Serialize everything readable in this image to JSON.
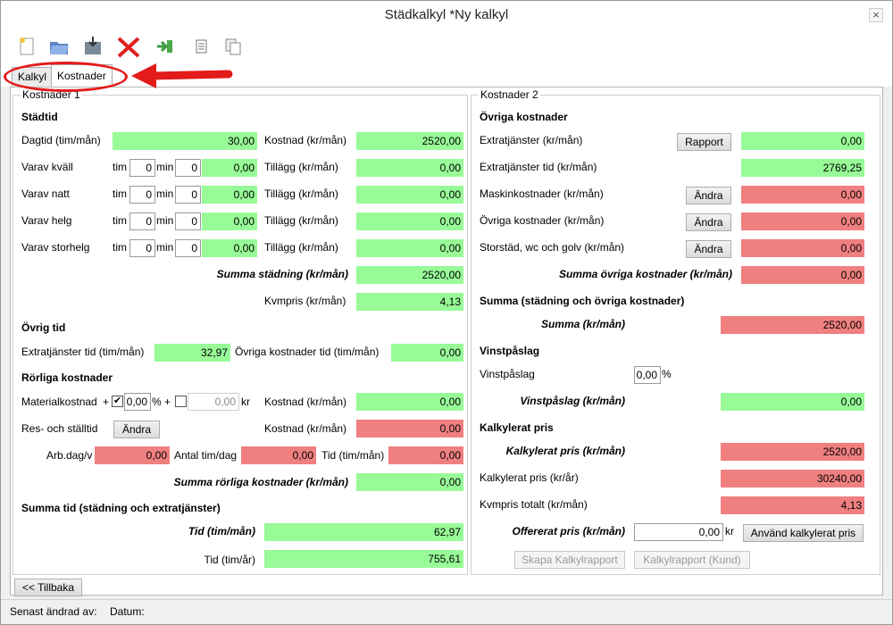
{
  "window": {
    "title": "Städkalkyl *Ny kalkyl",
    "close": "×"
  },
  "tabs": [
    {
      "label": "Kalkyl"
    },
    {
      "label": "Kostnader"
    }
  ],
  "left": {
    "legend": "Kostnader 1",
    "stadtid": {
      "header": "Städtid",
      "dagtid_label": "Dagtid (tim/mån)",
      "dagtid_value": "30,00",
      "kostnad_label": "Kostnad (kr/mån)",
      "kostnad_value": "2520,00",
      "tim": "tim",
      "min": "min",
      "tillagg_label": "Tillägg (kr/mån)",
      "rows": [
        {
          "label": "Varav kväll",
          "tim": "0",
          "min": "0",
          "value": "0,00",
          "tillagg": "0,00"
        },
        {
          "label": "Varav natt",
          "tim": "0",
          "min": "0",
          "value": "0,00",
          "tillagg": "0,00"
        },
        {
          "label": "Varav helg",
          "tim": "0",
          "min": "0",
          "value": "0,00",
          "tillagg": "0,00"
        },
        {
          "label": "Varav storhelg",
          "tim": "0",
          "min": "0",
          "value": "0,00",
          "tillagg": "0,00"
        }
      ],
      "summa_label": "Summa städning (kr/mån)",
      "summa_value": "2520,00",
      "kvmpris_label": "Kvmpris (kr/mån)",
      "kvmpris_value": "4,13"
    },
    "ovrig_tid": {
      "header": "Övrig tid",
      "extra_label": "Extratjänster tid (tim/mån)",
      "extra_value": "32,97",
      "ovriga_label": "Övriga kostnader tid (tim/mån)",
      "ovriga_value": "0,00"
    },
    "rorliga": {
      "header": "Rörliga kostnader",
      "material_label": "Materialkostnad",
      "plus": "+",
      "pct_value": "0,00",
      "pct": "%",
      "kr_value": "0,00",
      "kr": "kr",
      "kostnad_label": "Kostnad (kr/mån)",
      "material_kostnad": "0,00",
      "res_label": "Res- och ställtid",
      "andra": "Ändra",
      "res_kostnad": "0,00",
      "arbdag_label": "Arb.dag/v",
      "arbdag_value": "0,00",
      "antal_label": "Antal tim/dag",
      "antal_value": "0,00",
      "tid_label": "Tid (tim/mån)",
      "tid_value": "0,00",
      "summa_label": "Summa rörliga kostnader (kr/mån)",
      "summa_value": "0,00"
    },
    "summa_tid": {
      "header": "Summa tid (städning och extratjänster)",
      "tid_man_label": "Tid (tim/mån)",
      "tid_man_value": "62,97",
      "tid_ar_label": "Tid (tim/år)",
      "tid_ar_value": "755,61"
    }
  },
  "right": {
    "legend": "Kostnader 2",
    "ovriga": {
      "header": "Övriga kostnader",
      "extra_label": "Extratjänster (kr/mån)",
      "rapport": "Rapport",
      "extra_value": "0,00",
      "extratid_label": "Extratjänster tid (kr/mån)",
      "extratid_value": "2769,25",
      "maskin_label": "Maskinkostnader (kr/mån)",
      "maskin_value": "0,00",
      "ovr_label": "Övriga kostnader (kr/mån)",
      "ovr_value": "0,00",
      "stor_label": "Storstäd, wc och golv (kr/mån)",
      "stor_value": "0,00",
      "andra": "Ändra",
      "summa_label": "Summa övriga kostnader (kr/mån)",
      "summa_value": "0,00"
    },
    "summa": {
      "header": "Summa (städning och övriga kostnader)",
      "label": "Summa (kr/mån)",
      "value": "2520,00"
    },
    "vinst": {
      "header": "Vinstpåslag",
      "label": "Vinstpåslag",
      "pct_value": "0,00",
      "pct": "%",
      "result_label": "Vinstpåslag (kr/mån)",
      "result_value": "0,00"
    },
    "kalkylerat": {
      "header": "Kalkylerat pris",
      "man_label": "Kalkylerat pris (kr/mån)",
      "man_value": "2520,00",
      "ar_label": "Kalkylerat pris (kr/år)",
      "ar_value": "30240,00",
      "kvm_label": "Kvmpris totalt (kr/mån)",
      "kvm_value": "4,13",
      "offer_label": "Offererat pris (kr/mån)",
      "offer_value": "0,00",
      "kr": "kr",
      "anvand": "Använd kalkylerat pris",
      "skapa": "Skapa Kalkylrapport",
      "kund": "Kalkylrapport (Kund)"
    }
  },
  "bottom": {
    "back": "<< Tillbaka"
  },
  "status": {
    "andrad": "Senast ändrad av:",
    "datum": "Datum:"
  },
  "colors": {
    "green": "#98fb98",
    "red": "#f08080",
    "annotation": "#e31b1b"
  },
  "toolbar_icons": [
    "new-document-icon",
    "open-folder-icon",
    "save-icon",
    "delete-icon",
    "exit-icon",
    "document-icon",
    "copy-icon"
  ]
}
